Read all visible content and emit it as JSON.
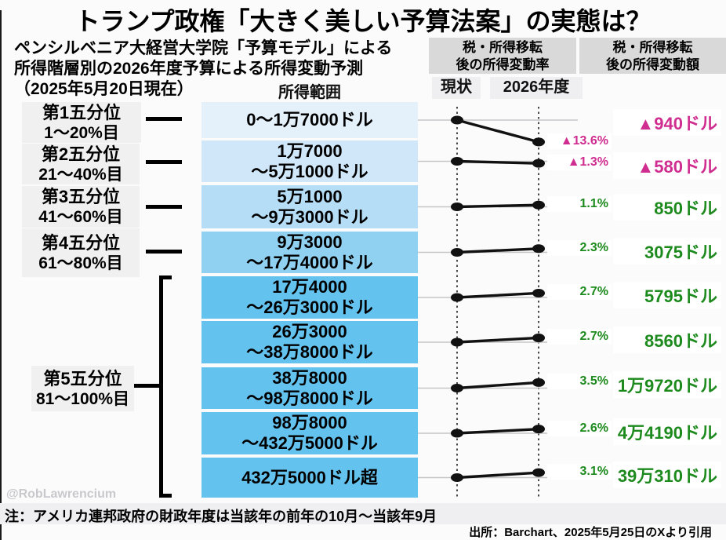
{
  "title": "トランプ政権「大きく美しい予算法案」の実態は？",
  "subtitle_lines": [
    "ペンシルベニア大経営大学院「予算モデル」による",
    "所得階層別の2026年度予算による所得変動予測",
    "（2025年5月20日現在）"
  ],
  "column_headers": {
    "income_range": "所得範囲",
    "rate_line1": "税・所得移転",
    "rate_line2": "後の所得変動率",
    "amount_line1": "税・所得移転",
    "amount_line2": "後の所得変動額",
    "current": "現状",
    "fy2026": "2026年度"
  },
  "quintiles": [
    {
      "name": "第1五分位",
      "range": "1〜20%目"
    },
    {
      "name": "第2五分位",
      "range": "21〜40%目"
    },
    {
      "name": "第3五分位",
      "range": "41〜60%目"
    },
    {
      "name": "第4五分位",
      "range": "61〜80%目"
    },
    {
      "name": "第5五分位",
      "range": "81〜100%目"
    }
  ],
  "chart_data": {
    "type": "slope",
    "title": "ペンシルベニア大経営大学院「予算モデル」による所得階層別の2026年度予算による所得変動予測（2025年5月20日現在）",
    "x_labels": [
      "現状",
      "2026年度"
    ],
    "legend_position": "top",
    "grid": true,
    "rows": [
      {
        "income_lines": [
          "0〜1万7000ドル"
        ],
        "pct_change": -13.6,
        "pct_label": "▲13.6%",
        "amount_label": "▲940ドル",
        "negative": true
      },
      {
        "income_lines": [
          "1万7000",
          "〜5万1000ドル"
        ],
        "pct_change": -1.3,
        "pct_label": "▲1.3%",
        "amount_label": "▲580ドル",
        "negative": true
      },
      {
        "income_lines": [
          "5万1000",
          "〜9万3000ドル"
        ],
        "pct_change": 1.1,
        "pct_label": "1.1%",
        "amount_label": "850ドル",
        "negative": false
      },
      {
        "income_lines": [
          "9万3000",
          "〜17万4000ドル"
        ],
        "pct_change": 2.3,
        "pct_label": "2.3%",
        "amount_label": "3075ドル",
        "negative": false
      },
      {
        "income_lines": [
          "17万4000",
          "〜26万3000ドル"
        ],
        "pct_change": 2.7,
        "pct_label": "2.7%",
        "amount_label": "5795ドル",
        "negative": false
      },
      {
        "income_lines": [
          "26万3000",
          "〜38万8000ドル"
        ],
        "pct_change": 2.7,
        "pct_label": "2.7%",
        "amount_label": "8560ドル",
        "negative": false
      },
      {
        "income_lines": [
          "38万8000",
          "〜98万8000ドル"
        ],
        "pct_change": 3.5,
        "pct_label": "3.5%",
        "amount_label": "1万9720ドル",
        "negative": false
      },
      {
        "income_lines": [
          "98万8000",
          "〜432万5000ドル"
        ],
        "pct_change": 2.6,
        "pct_label": "2.6%",
        "amount_label": "4万4190ドル",
        "negative": false
      },
      {
        "income_lines": [
          "432万5000ドル超"
        ],
        "pct_change": 3.1,
        "pct_label": "3.1%",
        "amount_label": "39万310ドル",
        "negative": false
      }
    ]
  },
  "colors": {
    "negative": "#cf2d8f",
    "positive": "#1d8a1d",
    "header_box": "#d9d9d9",
    "row_colors": [
      "#e4f1fb",
      "#cfe7f8",
      "#b5ddf5",
      "#90d0f0",
      "#64c3ee",
      "#64c3ee",
      "#64c3ee",
      "#64c3ee",
      "#64c3ee"
    ],
    "gridline": "#c6c6c8",
    "line": "#111111"
  },
  "note": "注：アメリカ連邦政府の財政年度は当該年の前年の10月〜当該年9月",
  "source": "出所：Barchart、2025年5月25日のXより引用",
  "watermark": "@RobLawrencium"
}
